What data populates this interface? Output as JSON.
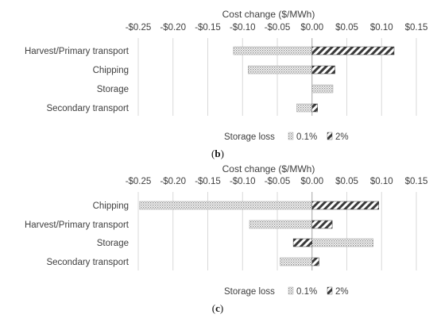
{
  "chart_data": [
    {
      "type": "bar",
      "orientation": "horizontal",
      "title": "Cost change ($/MWh)",
      "categories": [
        "Harvest/Primary transport",
        "Chipping",
        "Storage",
        "Secondary transport"
      ],
      "series": [
        {
          "name": "0.1%",
          "values": [
            -0.113,
            -0.092,
            0.03,
            -0.022
          ],
          "pattern": "dots"
        },
        {
          "name": "2%",
          "values": [
            0.118,
            0.033,
            0.0,
            0.008
          ],
          "pattern": "diagonal"
        }
      ],
      "xlim": [
        -0.25,
        0.15
      ],
      "ticks": [
        "-$0.25",
        "-$0.20",
        "-$0.15",
        "-$0.10",
        "-$0.05",
        "$0.00",
        "$0.05",
        "$0.10",
        "$0.15"
      ],
      "tick_values": [
        -0.25,
        -0.2,
        -0.15,
        -0.1,
        -0.05,
        0.0,
        0.05,
        0.1,
        0.15
      ],
      "legend_title": "Storage loss",
      "legend_placement": "bottom",
      "grid": true,
      "panel_label": "b"
    },
    {
      "type": "bar",
      "orientation": "horizontal",
      "title": "Cost change ($/MWh)",
      "categories": [
        "Chipping",
        "Harvest/Primary transport",
        "Storage",
        "Secondary transport"
      ],
      "series": [
        {
          "name": "0.1%",
          "values": [
            -0.248,
            -0.09,
            0.088,
            -0.046
          ],
          "pattern": "dots"
        },
        {
          "name": "2%",
          "values": [
            0.096,
            0.029,
            -0.027,
            0.01
          ],
          "pattern": "diagonal"
        }
      ],
      "xlim": [
        -0.25,
        0.15
      ],
      "ticks": [
        "-$0.25",
        "-$0.20",
        "-$0.15",
        "-$0.10",
        "-$0.05",
        "$0.00",
        "$0.05",
        "$0.10",
        "$0.15"
      ],
      "tick_values": [
        -0.25,
        -0.2,
        -0.15,
        -0.1,
        -0.05,
        0.0,
        0.05,
        0.1,
        0.15
      ],
      "legend_title": "Storage loss",
      "legend_placement": "bottom",
      "grid": true,
      "panel_label": "c"
    }
  ],
  "colors": {
    "text": "#404040",
    "dots": "#a6a6a6",
    "diagonal": "#404040",
    "grid": "#d9d9d9"
  }
}
